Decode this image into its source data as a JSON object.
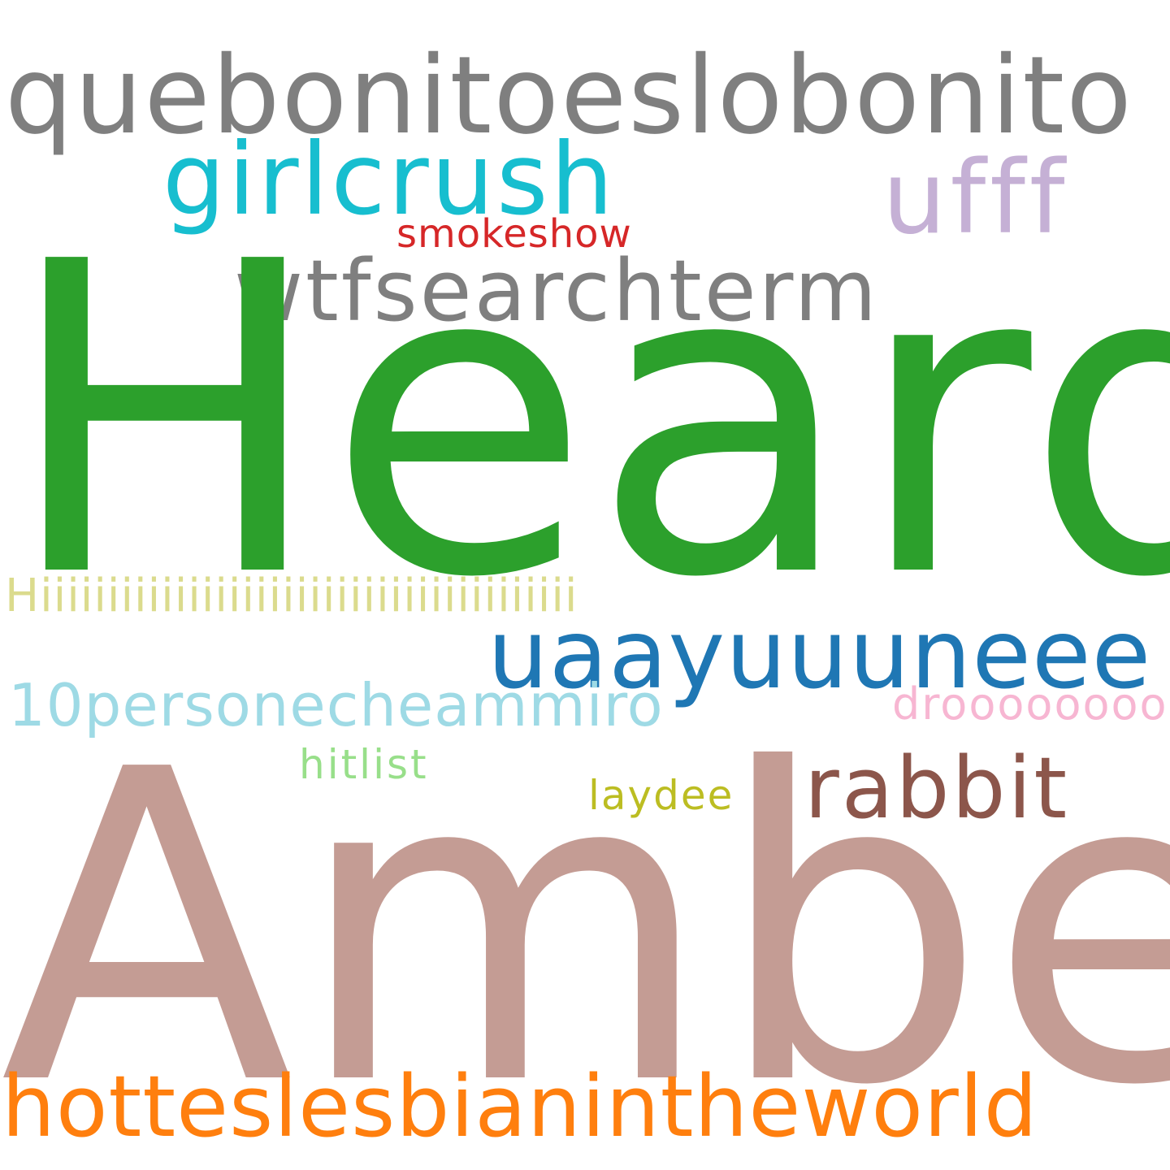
{
  "words": {
    "heard": {
      "text": "Heard",
      "color": "#2ca02c"
    },
    "amber": {
      "text": "Amber",
      "color": "#c49c94"
    },
    "quebonitoeslobonito": {
      "text": "quebonitoeslobonito",
      "color": "#7f7f7f"
    },
    "girlcrush": {
      "text": "girlcrush",
      "color": "#17becf"
    },
    "ufff": {
      "text": "ufff",
      "color": "#c5b0d5"
    },
    "smokeshow": {
      "text": "smokeshow",
      "color": "#d62728"
    },
    "wtfsearchterm": {
      "text": "wtfsearchterm",
      "color": "#7f7f7f"
    },
    "hiii": {
      "text": "Hiiiiiiiiiiiiiiiiiiiiiiiiiiiiiiiiiiiiiiii",
      "color": "#dbdb8d"
    },
    "uaayuuuneee": {
      "text": "uaayuuuneee",
      "color": "#1f77b4"
    },
    "tenpersone": {
      "text": "10personecheammiro",
      "color": "#9edae5"
    },
    "droool": {
      "text": "drooooooool",
      "color": "#f7b6d2"
    },
    "hitlist": {
      "text": "hitlist",
      "color": "#98df8a"
    },
    "rabbit": {
      "text": "rabbit",
      "color": "#8c564b"
    },
    "laydee": {
      "text": "laydee",
      "color": "#bcbd22"
    },
    "hotteslesbianintheworld": {
      "text": "hotteslesbianintheworld",
      "color": "#ff7f0e"
    }
  }
}
